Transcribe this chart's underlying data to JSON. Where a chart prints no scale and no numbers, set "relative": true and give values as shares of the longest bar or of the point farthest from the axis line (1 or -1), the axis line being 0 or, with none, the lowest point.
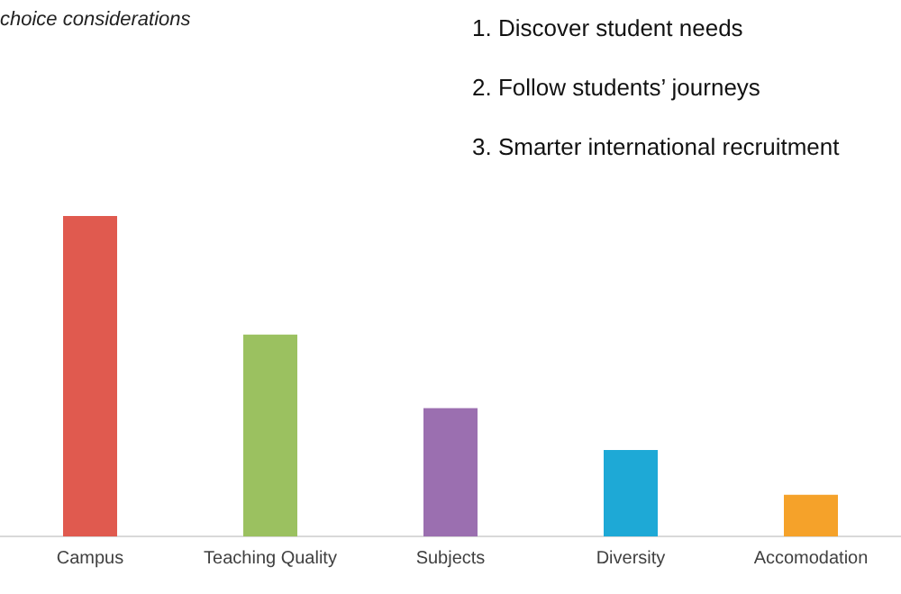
{
  "chart_data": {
    "type": "bar",
    "title": "choice considerations",
    "annotations": [
      "1.  Discover student needs",
      "2.  Follow students’ journeys",
      "3.  Smarter international recruitment"
    ],
    "categories": [
      "Campus",
      "Teaching Quality",
      "Subjects",
      "Diversity",
      "Accomodation"
    ],
    "values": [
      1,
      0.63,
      0.4,
      0.27,
      0.13
    ],
    "colors": [
      "#e05a4f",
      "#9bc160",
      "#9b6fb0",
      "#1ea9d6",
      "#f5a22a"
    ],
    "relative": true,
    "grid": false,
    "legend": false
  }
}
